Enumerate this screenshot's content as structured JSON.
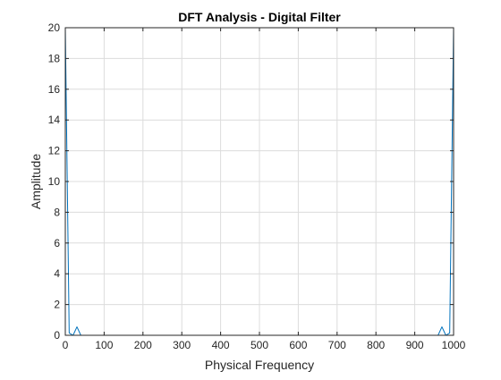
{
  "chart_data": {
    "type": "line",
    "title": "DFT Analysis - Digital Filter",
    "xlabel": "Physical Frequency",
    "ylabel": "Amplitude",
    "xlim": [
      0,
      1000
    ],
    "ylim": [
      0,
      20
    ],
    "xticks": [
      0,
      100,
      200,
      300,
      400,
      500,
      600,
      700,
      800,
      900,
      1000
    ],
    "yticks": [
      0,
      2,
      4,
      6,
      8,
      10,
      12,
      14,
      16,
      18,
      20
    ],
    "grid": true,
    "series": [
      {
        "color": "#0072BD",
        "x": [
          0,
          10,
          20,
          30,
          40,
          50,
          100,
          200,
          300,
          400,
          500,
          600,
          700,
          800,
          900,
          950,
          960,
          970,
          980,
          990,
          1000
        ],
        "y": [
          20,
          0.15,
          0,
          0.55,
          0,
          0,
          0,
          0,
          0,
          0,
          0,
          0,
          0,
          0,
          0,
          0,
          0,
          0.55,
          0,
          0.15,
          20
        ]
      }
    ]
  }
}
